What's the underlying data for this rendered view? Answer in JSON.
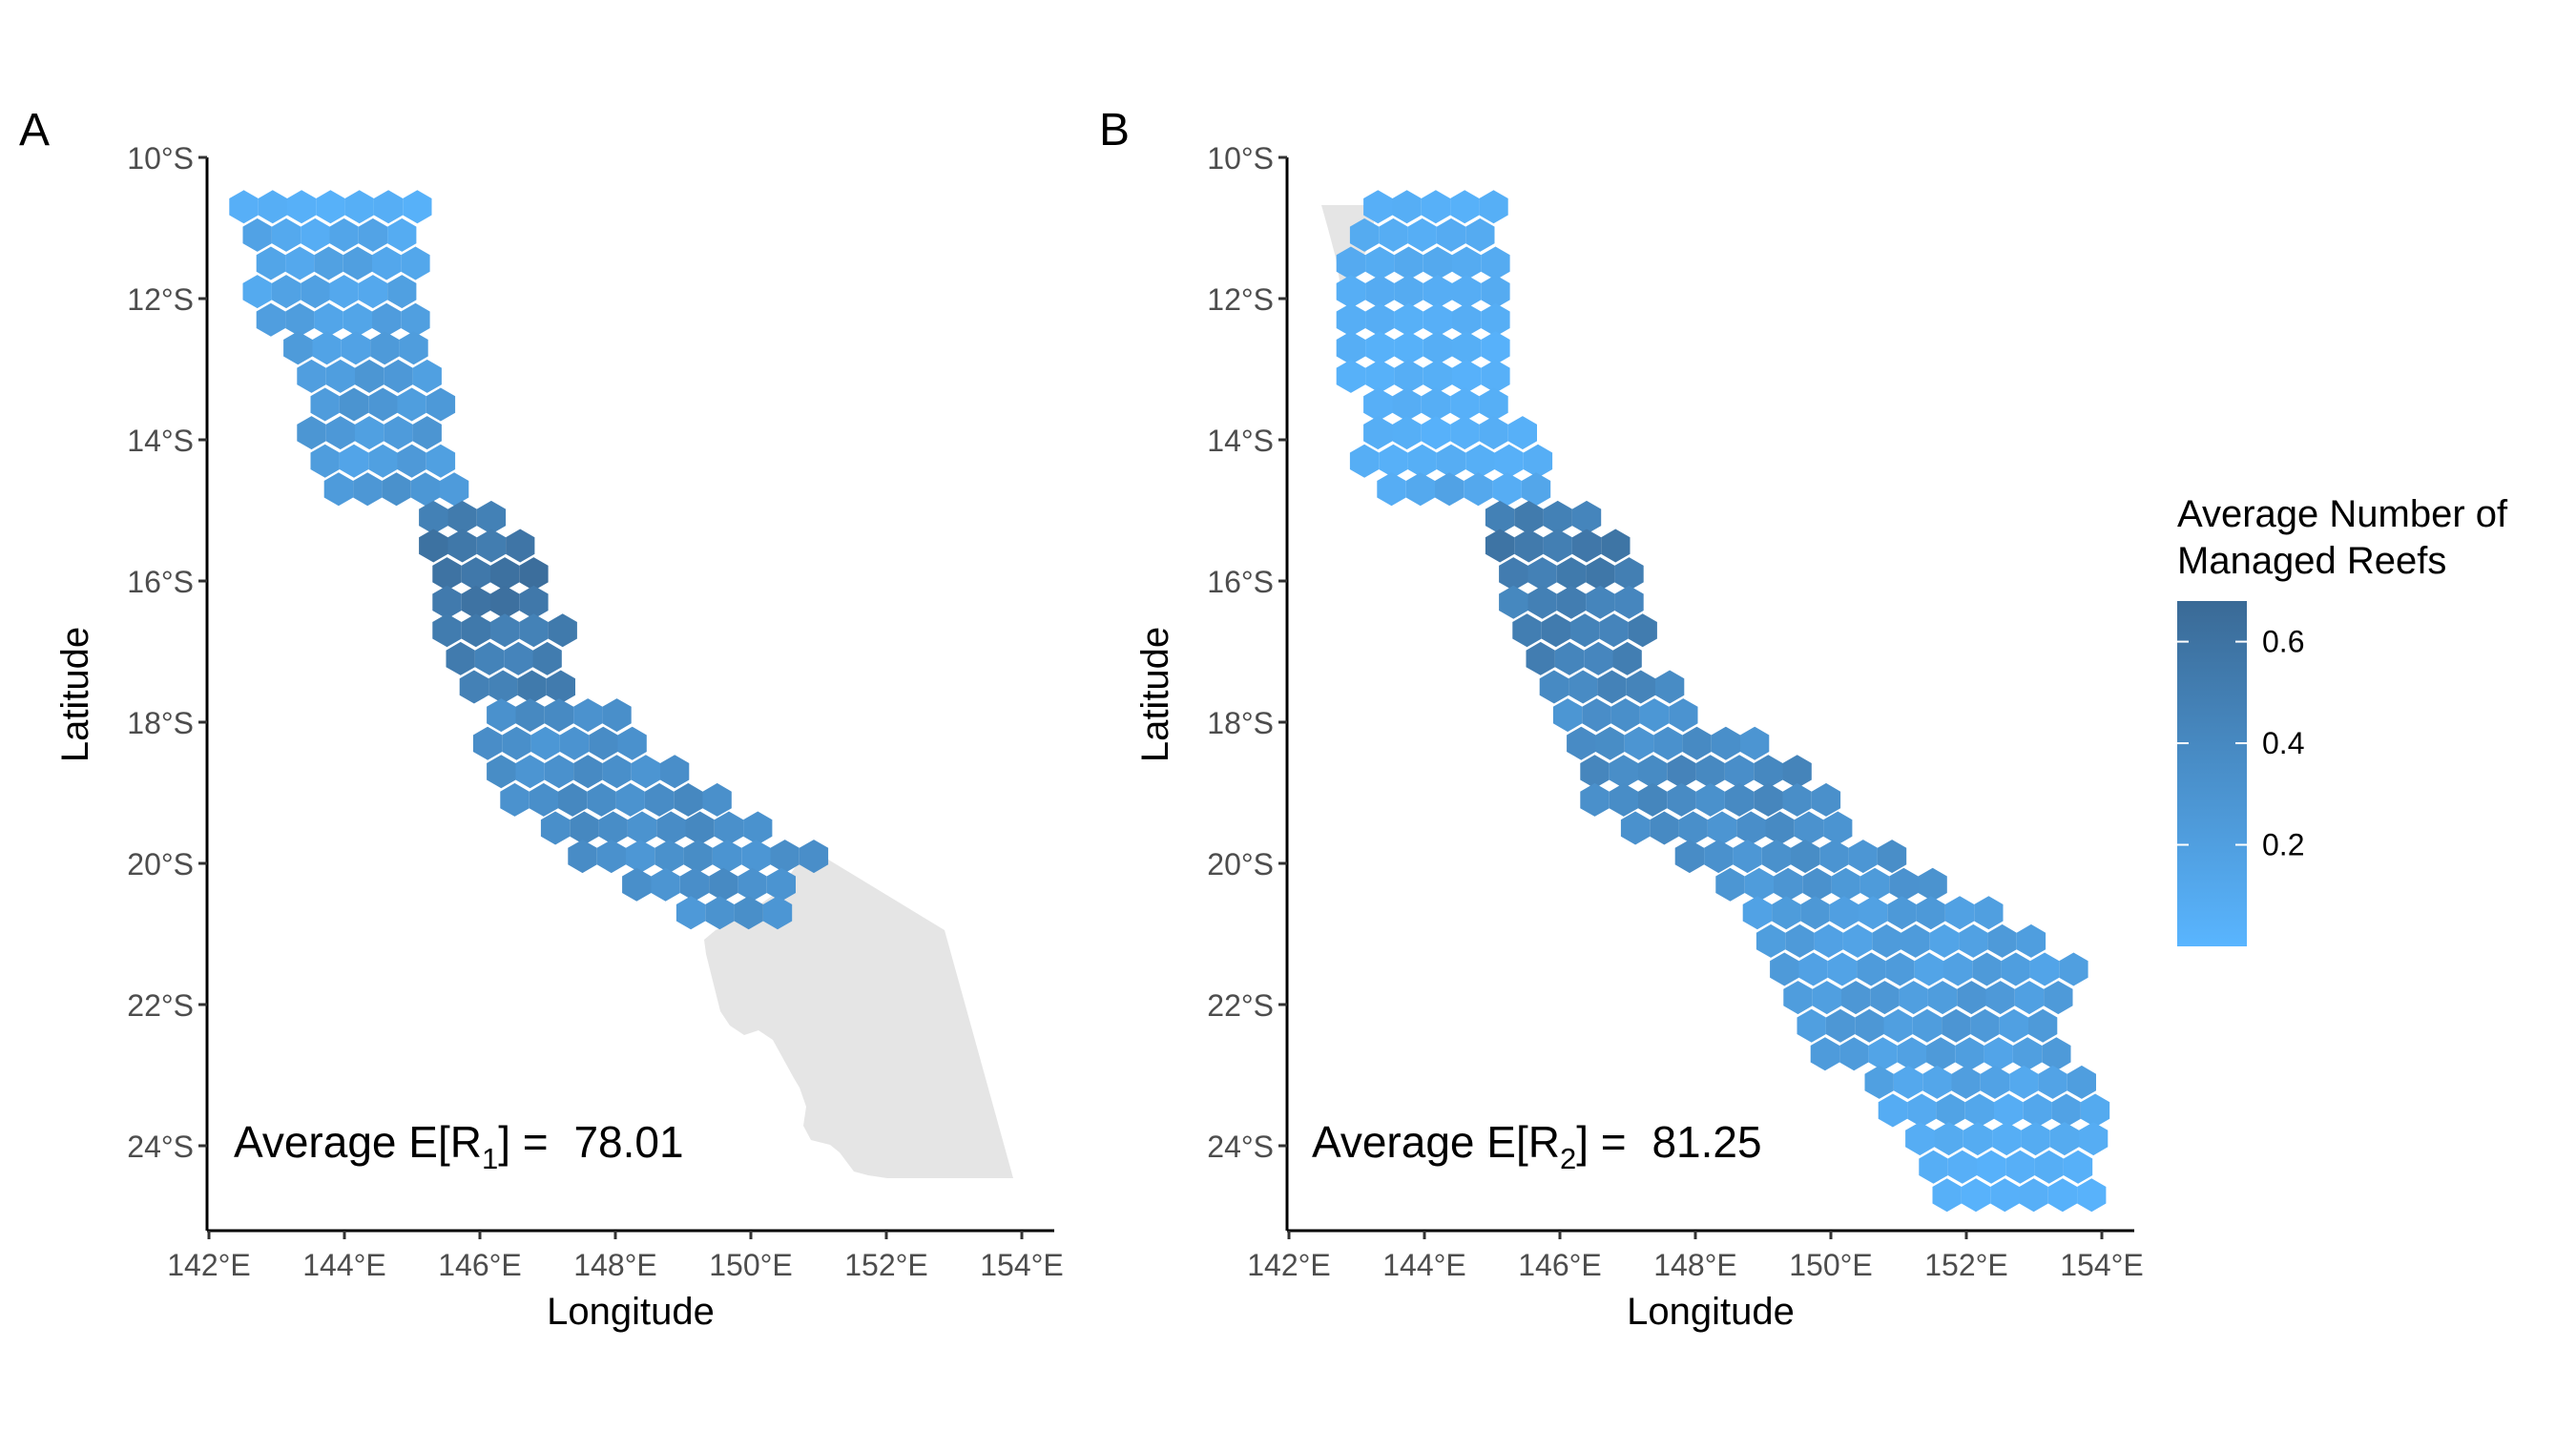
{
  "figure": {
    "legend": {
      "title_line1": "Average Number of",
      "title_line2": "Managed Reefs",
      "labels": [
        "0.6",
        "0.4",
        "0.2"
      ],
      "label_values": [
        0.6,
        0.4,
        0.2
      ],
      "range": [
        0.0,
        0.68
      ],
      "color_low": "#59B5FF",
      "color_high": "#3A6A96"
    },
    "land_color": "#E5E5E5"
  },
  "chart_data": [
    {
      "type": "heatmap",
      "panel_label": "A",
      "xlabel": "Longitude",
      "ylabel": "Latitude",
      "xlim": [
        142,
        154
      ],
      "ylim": [
        -25,
        -10
      ],
      "x_ticks": [
        142,
        144,
        146,
        148,
        150,
        152,
        154
      ],
      "x_tick_labels": [
        "142°E",
        "144°E",
        "146°E",
        "148°E",
        "150°E",
        "152°E",
        "154°E"
      ],
      "y_ticks": [
        -10,
        -12,
        -14,
        -16,
        -18,
        -20,
        -22,
        -24
      ],
      "y_tick_labels": [
        "10°S",
        "12°S",
        "14°S",
        "16°S",
        "18°S",
        "20°S",
        "22°S",
        "24°S"
      ],
      "annotation": {
        "prefix": "Average E[R",
        "subscript": "1",
        "suffix": "] = ",
        "value": "78.01"
      },
      "hexbins": [
        {
          "lat": -10.7,
          "lon_from": 142.5,
          "lon_to": 145.0,
          "value": 0.05
        },
        {
          "lat": -11.1,
          "lon_from": 142.7,
          "lon_to": 144.8,
          "value": 0.12
        },
        {
          "lat": -11.5,
          "lon_from": 142.9,
          "lon_to": 145.0,
          "value": 0.16
        },
        {
          "lat": -11.9,
          "lon_from": 142.7,
          "lon_to": 144.8,
          "value": 0.15
        },
        {
          "lat": -12.3,
          "lon_from": 142.9,
          "lon_to": 145.0,
          "value": 0.18
        },
        {
          "lat": -12.7,
          "lon_from": 143.3,
          "lon_to": 144.8,
          "value": 0.2
        },
        {
          "lat": -13.1,
          "lon_from": 143.5,
          "lon_to": 145.0,
          "value": 0.24
        },
        {
          "lat": -13.5,
          "lon_from": 143.7,
          "lon_to": 145.2,
          "value": 0.26
        },
        {
          "lat": -13.9,
          "lon_from": 143.5,
          "lon_to": 145.4,
          "value": 0.24
        },
        {
          "lat": -14.3,
          "lon_from": 143.7,
          "lon_to": 145.6,
          "value": 0.2
        },
        {
          "lat": -14.7,
          "lon_from": 143.9,
          "lon_to": 145.8,
          "value": 0.28
        },
        {
          "lat": -15.1,
          "lon_from": 145.3,
          "lon_to": 146.2,
          "value": 0.48
        },
        {
          "lat": -15.5,
          "lon_from": 145.3,
          "lon_to": 146.4,
          "value": 0.56
        },
        {
          "lat": -15.9,
          "lon_from": 145.5,
          "lon_to": 146.6,
          "value": 0.6
        },
        {
          "lat": -16.3,
          "lon_from": 145.5,
          "lon_to": 146.8,
          "value": 0.58
        },
        {
          "lat": -16.7,
          "lon_from": 145.5,
          "lon_to": 147.0,
          "value": 0.5
        },
        {
          "lat": -17.1,
          "lon_from": 145.7,
          "lon_to": 147.0,
          "value": 0.48
        },
        {
          "lat": -17.5,
          "lon_from": 145.9,
          "lon_to": 147.2,
          "value": 0.5
        },
        {
          "lat": -17.9,
          "lon_from": 146.3,
          "lon_to": 147.8,
          "value": 0.36
        },
        {
          "lat": -18.3,
          "lon_from": 146.1,
          "lon_to": 148.2,
          "value": 0.32
        },
        {
          "lat": -18.7,
          "lon_from": 146.3,
          "lon_to": 149.0,
          "value": 0.34
        },
        {
          "lat": -19.1,
          "lon_from": 146.5,
          "lon_to": 149.6,
          "value": 0.36
        },
        {
          "lat": -19.5,
          "lon_from": 147.1,
          "lon_to": 150.2,
          "value": 0.36
        },
        {
          "lat": -19.9,
          "lon_from": 147.5,
          "lon_to": 150.8,
          "value": 0.32
        },
        {
          "lat": -20.3,
          "lon_from": 148.3,
          "lon_to": 150.6,
          "value": 0.34
        },
        {
          "lat": -20.7,
          "lon_from": 149.1,
          "lon_to": 150.4,
          "value": 0.3
        }
      ]
    },
    {
      "type": "heatmap",
      "panel_label": "B",
      "xlabel": "Longitude",
      "ylabel": "Latitude",
      "xlim": [
        142,
        154
      ],
      "ylim": [
        -25,
        -10
      ],
      "x_ticks": [
        142,
        144,
        146,
        148,
        150,
        152,
        154
      ],
      "x_tick_labels": [
        "142°E",
        "144°E",
        "146°E",
        "148°E",
        "150°E",
        "152°E",
        "154°E"
      ],
      "y_ticks": [
        -10,
        -12,
        -14,
        -16,
        -18,
        -20,
        -22,
        -24
      ],
      "y_tick_labels": [
        "10°S",
        "12°S",
        "14°S",
        "16°S",
        "18°S",
        "20°S",
        "22°S",
        "24°S"
      ],
      "annotation": {
        "prefix": "Average E[R",
        "subscript": "2",
        "suffix": "] = ",
        "value": "81.25"
      },
      "hexbins": [
        {
          "lat": -10.7,
          "lon_from": 143.3,
          "lon_to": 145.0,
          "value": 0.05
        },
        {
          "lat": -11.1,
          "lon_from": 143.1,
          "lon_to": 145.0,
          "value": 0.08
        },
        {
          "lat": -11.5,
          "lon_from": 142.9,
          "lon_to": 145.0,
          "value": 0.1
        },
        {
          "lat": -11.9,
          "lon_from": 142.9,
          "lon_to": 145.0,
          "value": 0.08
        },
        {
          "lat": -12.3,
          "lon_from": 142.9,
          "lon_to": 145.0,
          "value": 0.06
        },
        {
          "lat": -12.7,
          "lon_from": 142.9,
          "lon_to": 145.0,
          "value": 0.05
        },
        {
          "lat": -13.1,
          "lon_from": 142.9,
          "lon_to": 145.0,
          "value": 0.05
        },
        {
          "lat": -13.5,
          "lon_from": 143.3,
          "lon_to": 145.2,
          "value": 0.06
        },
        {
          "lat": -13.9,
          "lon_from": 143.3,
          "lon_to": 145.4,
          "value": 0.05
        },
        {
          "lat": -14.3,
          "lon_from": 143.1,
          "lon_to": 145.6,
          "value": 0.06
        },
        {
          "lat": -14.7,
          "lon_from": 143.5,
          "lon_to": 145.8,
          "value": 0.12
        },
        {
          "lat": -15.1,
          "lon_from": 145.1,
          "lon_to": 146.4,
          "value": 0.48
        },
        {
          "lat": -15.5,
          "lon_from": 145.1,
          "lon_to": 146.6,
          "value": 0.54
        },
        {
          "lat": -15.9,
          "lon_from": 145.3,
          "lon_to": 146.8,
          "value": 0.52
        },
        {
          "lat": -16.3,
          "lon_from": 145.3,
          "lon_to": 146.8,
          "value": 0.46
        },
        {
          "lat": -16.7,
          "lon_from": 145.5,
          "lon_to": 147.0,
          "value": 0.48
        },
        {
          "lat": -17.1,
          "lon_from": 145.7,
          "lon_to": 147.0,
          "value": 0.46
        },
        {
          "lat": -17.5,
          "lon_from": 145.9,
          "lon_to": 147.4,
          "value": 0.42
        },
        {
          "lat": -17.9,
          "lon_from": 146.1,
          "lon_to": 148.0,
          "value": 0.32
        },
        {
          "lat": -18.3,
          "lon_from": 146.3,
          "lon_to": 148.8,
          "value": 0.34
        },
        {
          "lat": -18.7,
          "lon_from": 146.5,
          "lon_to": 149.6,
          "value": 0.4
        },
        {
          "lat": -19.1,
          "lon_from": 146.5,
          "lon_to": 149.8,
          "value": 0.38
        },
        {
          "lat": -19.5,
          "lon_from": 147.1,
          "lon_to": 150.2,
          "value": 0.34
        },
        {
          "lat": -19.9,
          "lon_from": 147.9,
          "lon_to": 150.8,
          "value": 0.32
        },
        {
          "lat": -20.3,
          "lon_from": 148.5,
          "lon_to": 151.4,
          "value": 0.28
        },
        {
          "lat": -20.7,
          "lon_from": 148.9,
          "lon_to": 152.2,
          "value": 0.22
        },
        {
          "lat": -21.1,
          "lon_from": 149.1,
          "lon_to": 153.0,
          "value": 0.2
        },
        {
          "lat": -21.5,
          "lon_from": 149.3,
          "lon_to": 153.4,
          "value": 0.2
        },
        {
          "lat": -21.9,
          "lon_from": 149.5,
          "lon_to": 153.2,
          "value": 0.24
        },
        {
          "lat": -22.3,
          "lon_from": 149.7,
          "lon_to": 153.2,
          "value": 0.24
        },
        {
          "lat": -22.7,
          "lon_from": 149.9,
          "lon_to": 153.4,
          "value": 0.2
        },
        {
          "lat": -23.1,
          "lon_from": 150.7,
          "lon_to": 153.6,
          "value": 0.16
        },
        {
          "lat": -23.5,
          "lon_from": 150.9,
          "lon_to": 153.8,
          "value": 0.12
        },
        {
          "lat": -23.9,
          "lon_from": 151.3,
          "lon_to": 153.8,
          "value": 0.08
        },
        {
          "lat": -24.3,
          "lon_from": 151.5,
          "lon_to": 153.6,
          "value": 0.05
        },
        {
          "lat": -24.7,
          "lon_from": 151.7,
          "lon_to": 153.8,
          "value": 0.04
        }
      ]
    }
  ]
}
